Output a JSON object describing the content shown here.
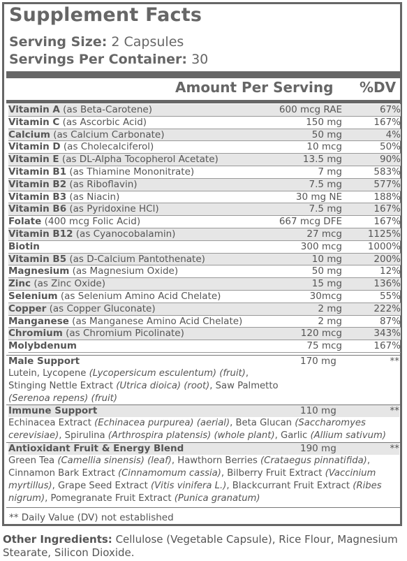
{
  "title": "Supplement Facts",
  "serving_size_label": "Serving Size:",
  "serving_size_value": "2 Capsules",
  "servings_per_container_label": "Servings Per Container:",
  "servings_per_container_value": "30",
  "header_amount": "Amount Per Serving",
  "header_dv": "%DV",
  "nutrients": [
    {
      "name": "Vitamin A",
      "form": " (as Beta-Carotene)",
      "amount": "600 mcg RAE",
      "dv": "67%"
    },
    {
      "name": "Vitamin C",
      "form": " (as Ascorbic Acid)",
      "amount": "150 mg",
      "dv": "167%"
    },
    {
      "name": "Calcium",
      "form": " (as Calcium Carbonate)",
      "amount": "50 mg",
      "dv": "4%"
    },
    {
      "name": "Vitamin D",
      "form": " (as Cholecalciferol)",
      "amount": "10 mcg",
      "dv": "50%"
    },
    {
      "name": "Vitamin E",
      "form": " (as DL-Alpha Tocopherol Acetate)",
      "amount": "13.5 mg",
      "dv": "90%"
    },
    {
      "name": "Vitamin B1",
      "form": " (as Thiamine Mononitrate)",
      "amount": "7 mg",
      "dv": "583%"
    },
    {
      "name": "Vitamin B2",
      "form": " (as Riboflavin)",
      "amount": "7.5 mg",
      "dv": "577%"
    },
    {
      "name": "Vitamin B3",
      "form": " (as Niacin)",
      "amount": "30 mg NE",
      "dv": "188%"
    },
    {
      "name": "Vitamin B6",
      "form": " (as Pyridoxine HCl)",
      "amount": "7.5 mg",
      "dv": "167%"
    },
    {
      "name": "Folate",
      "form": " (400 mcg Folic Acid)",
      "amount": "667 mcg DFE",
      "dv": "167%"
    },
    {
      "name": "Vitamin B12",
      "form": " (as Cyanocobalamin)",
      "amount": "27 mcg",
      "dv": "1125%"
    },
    {
      "name": "Biotin",
      "form": "",
      "amount": "300 mcg",
      "dv": "1000%"
    },
    {
      "name": "Vitamin B5",
      "form": " (as D-Calcium Pantothenate)",
      "amount": "10 mg",
      "dv": "200%"
    },
    {
      "name": "Magnesium",
      "form": " (as Magnesium Oxide)",
      "amount": "50 mg",
      "dv": "12%"
    },
    {
      "name": "Zinc",
      "form": " (as Zinc Oxide)",
      "amount": "15 mg",
      "dv": "136%"
    },
    {
      "name": "Selenium",
      "form": " (as Selenium Amino Acid Chelate)",
      "amount": "30mcg",
      "dv": "55%"
    },
    {
      "name": "Copper",
      "form": " (as Copper Gluconate)",
      "amount": "2 mg",
      "dv": "222%"
    },
    {
      "name": "Manganese",
      "form": " (as Manganese Amino Acid Chelate)",
      "amount": "2 mg",
      "dv": "87%"
    },
    {
      "name": "Chromium",
      "form": " (as Chromium Picolinate)",
      "amount": "120 mcg",
      "dv": "343%"
    },
    {
      "name": "Molybdenum",
      "form": "",
      "amount": "75 mcg",
      "dv": "167%"
    }
  ],
  "blends": [
    {
      "name": "Male Support",
      "amount": "170 mg",
      "dv": "**",
      "parts": [
        {
          "t": "Lutein, Lycopene "
        },
        {
          "i": "(Lycopersicum esculentum) (fruit)"
        },
        {
          "t": ","
        },
        {
          "br": true
        },
        {
          "t": "Stinging Nettle Extract "
        },
        {
          "i": "(Utrica dioica) (root)"
        },
        {
          "t": ", Saw Palmetto"
        },
        {
          "br": true
        },
        {
          "i": "(Serenoa repens) (fruit)"
        }
      ]
    },
    {
      "name": "Immune Support",
      "amount": "110 mg",
      "dv": "**",
      "parts": [
        {
          "t": "Echinacea Extract "
        },
        {
          "i": "(Echinacea purpurea) (aerial)"
        },
        {
          "t": ", Beta Glucan "
        },
        {
          "i": "(Saccharomyes"
        },
        {
          "br": true
        },
        {
          "i": "cerevisiae)"
        },
        {
          "t": ", Spirulina "
        },
        {
          "i": "(Arthrospira platensis) (whole plant)"
        },
        {
          "t": ", Garlic "
        },
        {
          "i": "(Allium sativum) (bulb)"
        }
      ]
    },
    {
      "name": "Antioxidant Fruit & Energy Blend",
      "amount": "190 mg",
      "dv": "**",
      "parts": [
        {
          "t": "Green Tea "
        },
        {
          "i": "(Camellia sinensis) (leaf)"
        },
        {
          "t": ", Hawthorn Berries "
        },
        {
          "i": "(Crataegus pinnatifida)"
        },
        {
          "t": ","
        },
        {
          "br": true
        },
        {
          "t": "Cinnamon Bark Extract "
        },
        {
          "i": "(Cinnamomum cassia)"
        },
        {
          "t": ", Bilberry Fruit Extract "
        },
        {
          "i": "(Vaccinium"
        },
        {
          "br": true
        },
        {
          "i": "myrtillus)"
        },
        {
          "t": ", Grape Seed Extract "
        },
        {
          "i": "(Vitis vinifera L.)"
        },
        {
          "t": ", Blackcurrant Fruit Extract "
        },
        {
          "i": "(Ribes"
        },
        {
          "br": true
        },
        {
          "i": "nigrum)"
        },
        {
          "t": ", Pomegranate Fruit Extract "
        },
        {
          "i": "(Punica granatum)"
        }
      ]
    }
  ],
  "footnote": "** Daily Value (DV) not established",
  "other_ingredients_label": "Other Ingredients:",
  "other_ingredients_text": " Cellulose (Vegetable Capsule), Rice Flour, Magnesium Stearate, Silicon Dioxide."
}
